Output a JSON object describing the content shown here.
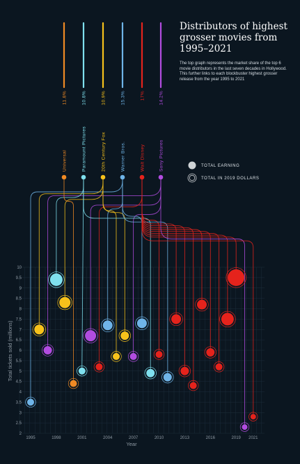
{
  "header": {
    "title": "Distributors of highest grosser movies from 1995–2021",
    "description": "The top graph represents the market share of the top 6 movie distributors in the last seven decades in Hollywood. This further links to each blockbuster highest grosser release from the year 1995 to 2021"
  },
  "legend": {
    "total_earning": "TOTAL EARNING",
    "total_2019": "TOTAL IN 2019 DOLLARS"
  },
  "chart_data": {
    "type": "scatter",
    "xlabel": "Year",
    "ylabel": "Total tickets sold (millions)",
    "xlim": [
      1995,
      2021
    ],
    "ylim": [
      2,
      10
    ],
    "x_ticks": [
      "1995",
      "1998",
      "2001",
      "2004",
      "2007",
      "2010",
      "2013",
      "2016",
      "2019",
      "2021"
    ],
    "y_ticks": [
      "2",
      "2.5",
      "3",
      "3.5",
      "4",
      "4.5",
      "5",
      "5.5",
      "6",
      "6.5",
      "7",
      "7.5",
      "8",
      "8.5",
      "9",
      "9.5",
      "10"
    ],
    "grid": true,
    "distributors": [
      {
        "name": "Universal",
        "share": "11.8%",
        "color": "#f08a24"
      },
      {
        "name": "Paramount Pictures",
        "share": "10.8%",
        "color": "#7fe0ee"
      },
      {
        "name": "20th Century Fox",
        "share": "10.9%",
        "color": "#f7c21b"
      },
      {
        "name": "Warner Bros.",
        "share": "15.3%",
        "color": "#6fb4e8"
      },
      {
        "name": "Walt Disney",
        "share": "17%",
        "color": "#e5231c"
      },
      {
        "name": "Sony Pictures",
        "share": "14.2%",
        "color": "#b24ce0"
      }
    ],
    "points": [
      {
        "x": 1995,
        "y": 3.5,
        "d": 3,
        "size": 5
      },
      {
        "x": 1996,
        "y": 7.0,
        "d": 2,
        "size": 7
      },
      {
        "x": 1997,
        "y": 6.0,
        "d": 5,
        "size": 6
      },
      {
        "x": 1998,
        "y": 9.4,
        "d": 1,
        "size": 9
      },
      {
        "x": 1999,
        "y": 8.3,
        "d": 2,
        "size": 8
      },
      {
        "x": 2000,
        "y": 4.4,
        "d": 0,
        "size": 5
      },
      {
        "x": 2001,
        "y": 5.0,
        "d": 1,
        "size": 5
      },
      {
        "x": 2002,
        "y": 6.7,
        "d": 5,
        "size": 8
      },
      {
        "x": 2003,
        "y": 5.2,
        "d": 4,
        "size": 5
      },
      {
        "x": 2004,
        "y": 7.2,
        "d": 3,
        "size": 7
      },
      {
        "x": 2005,
        "y": 5.7,
        "d": 2,
        "size": 5
      },
      {
        "x": 2006,
        "y": 6.7,
        "d": 2,
        "size": 6
      },
      {
        "x": 2007,
        "y": 5.7,
        "d": 5,
        "size": 5
      },
      {
        "x": 2008,
        "y": 7.3,
        "d": 3,
        "size": 7
      },
      {
        "x": 2009,
        "y": 4.9,
        "d": 1,
        "size": 6
      },
      {
        "x": 2010,
        "y": 5.8,
        "d": 4,
        "size": 5
      },
      {
        "x": 2011,
        "y": 4.7,
        "d": 3,
        "size": 6
      },
      {
        "x": 2012,
        "y": 7.5,
        "d": 4,
        "size": 7
      },
      {
        "x": 2013,
        "y": 5.0,
        "d": 4,
        "size": 6
      },
      {
        "x": 2014,
        "y": 4.3,
        "d": 4,
        "size": 5
      },
      {
        "x": 2015,
        "y": 8.2,
        "d": 4,
        "size": 7
      },
      {
        "x": 2016,
        "y": 5.9,
        "d": 4,
        "size": 6
      },
      {
        "x": 2017,
        "y": 5.2,
        "d": 4,
        "size": 5
      },
      {
        "x": 2018,
        "y": 7.5,
        "d": 4,
        "size": 9
      },
      {
        "x": 2019,
        "y": 9.5,
        "d": 4,
        "size": 12
      },
      {
        "x": 2020,
        "y": 2.3,
        "d": 5,
        "size": 4
      },
      {
        "x": 2021,
        "y": 2.8,
        "d": 4,
        "size": 4
      }
    ]
  }
}
